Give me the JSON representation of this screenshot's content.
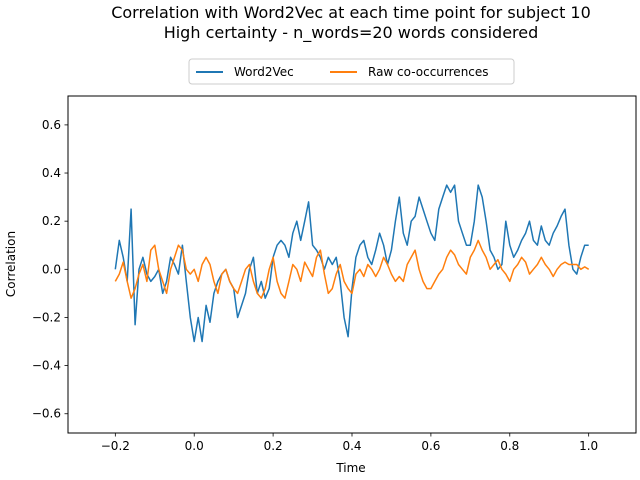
{
  "chart_data": {
    "type": "line",
    "title": "Correlation with Word2Vec at each time point for subject 10",
    "subtitle": "High certainty - n_words=20 words considered",
    "xlabel": "Time",
    "ylabel": "Correlation",
    "xlim": [
      -0.32,
      1.12
    ],
    "ylim": [
      -0.68,
      0.72
    ],
    "xticks": [
      -0.2,
      0.0,
      0.2,
      0.4,
      0.6,
      0.8,
      1.0
    ],
    "xtick_labels": [
      "−0.2",
      "0.0",
      "0.2",
      "0.4",
      "0.6",
      "0.8",
      "1.0"
    ],
    "yticks": [
      -0.6,
      -0.4,
      -0.2,
      0.0,
      0.2,
      0.4,
      0.6
    ],
    "ytick_labels": [
      "−0.6",
      "−0.4",
      "−0.2",
      "0.0",
      "0.2",
      "0.4",
      "0.6"
    ],
    "grid": false,
    "legend_position": "top-center",
    "series": [
      {
        "name": "Word2Vec",
        "color": "#1f77b4",
        "x": [
          -0.2,
          -0.19,
          -0.18,
          -0.17,
          -0.16,
          -0.15,
          -0.14,
          -0.13,
          -0.12,
          -0.11,
          -0.1,
          -0.09,
          -0.08,
          -0.07,
          -0.06,
          -0.05,
          -0.04,
          -0.03,
          -0.02,
          -0.01,
          0.0,
          0.01,
          0.02,
          0.03,
          0.04,
          0.05,
          0.06,
          0.07,
          0.08,
          0.09,
          0.1,
          0.11,
          0.12,
          0.13,
          0.14,
          0.15,
          0.16,
          0.17,
          0.18,
          0.19,
          0.2,
          0.21,
          0.22,
          0.23,
          0.24,
          0.25,
          0.26,
          0.27,
          0.28,
          0.29,
          0.3,
          0.31,
          0.32,
          0.33,
          0.34,
          0.35,
          0.36,
          0.37,
          0.38,
          0.39,
          0.4,
          0.41,
          0.42,
          0.43,
          0.44,
          0.45,
          0.46,
          0.47,
          0.48,
          0.49,
          0.5,
          0.51,
          0.52,
          0.53,
          0.54,
          0.55,
          0.56,
          0.57,
          0.58,
          0.59,
          0.6,
          0.61,
          0.62,
          0.63,
          0.64,
          0.65,
          0.66,
          0.67,
          0.68,
          0.69,
          0.7,
          0.71,
          0.72,
          0.73,
          0.74,
          0.75,
          0.76,
          0.77,
          0.78,
          0.79,
          0.8,
          0.81,
          0.82,
          0.83,
          0.84,
          0.85,
          0.86,
          0.87,
          0.88,
          0.89,
          0.9,
          0.91,
          0.92,
          0.93,
          0.94,
          0.95,
          0.96,
          0.97,
          0.98,
          0.99,
          1.0
        ],
        "y": [
          0.0,
          0.12,
          0.05,
          -0.05,
          0.25,
          -0.23,
          0.0,
          0.05,
          -0.02,
          -0.05,
          -0.03,
          0.0,
          -0.1,
          -0.05,
          0.05,
          0.02,
          -0.02,
          0.1,
          -0.05,
          -0.2,
          -0.3,
          -0.2,
          -0.3,
          -0.15,
          -0.22,
          -0.1,
          -0.05,
          -0.02,
          0.0,
          -0.05,
          -0.08,
          -0.2,
          -0.15,
          -0.1,
          0.0,
          0.05,
          -0.1,
          -0.05,
          -0.12,
          -0.08,
          0.05,
          0.1,
          0.12,
          0.1,
          0.05,
          0.15,
          0.2,
          0.12,
          0.2,
          0.28,
          0.1,
          0.08,
          0.05,
          0.0,
          0.05,
          0.02,
          0.05,
          -0.05,
          -0.2,
          -0.28,
          -0.08,
          0.05,
          0.1,
          0.12,
          0.05,
          0.02,
          0.08,
          0.15,
          0.1,
          0.02,
          0.08,
          0.2,
          0.3,
          0.15,
          0.1,
          0.2,
          0.22,
          0.3,
          0.25,
          0.2,
          0.15,
          0.12,
          0.25,
          0.3,
          0.35,
          0.32,
          0.35,
          0.2,
          0.15,
          0.1,
          0.1,
          0.2,
          0.35,
          0.3,
          0.2,
          0.08,
          0.05,
          0.0,
          0.02,
          0.2,
          0.1,
          0.05,
          0.08,
          0.12,
          0.15,
          0.2,
          0.12,
          0.1,
          0.18,
          0.12,
          0.1,
          0.15,
          0.18,
          0.22,
          0.25,
          0.1,
          0.0,
          -0.02,
          0.05,
          0.1,
          0.1
        ]
      },
      {
        "name": "Raw co-occurrences",
        "color": "#ff7f0e",
        "x": [
          -0.2,
          -0.19,
          -0.18,
          -0.17,
          -0.16,
          -0.15,
          -0.14,
          -0.13,
          -0.12,
          -0.11,
          -0.1,
          -0.09,
          -0.08,
          -0.07,
          -0.06,
          -0.05,
          -0.04,
          -0.03,
          -0.02,
          -0.01,
          0.0,
          0.01,
          0.02,
          0.03,
          0.04,
          0.05,
          0.06,
          0.07,
          0.08,
          0.09,
          0.1,
          0.11,
          0.12,
          0.13,
          0.14,
          0.15,
          0.16,
          0.17,
          0.18,
          0.19,
          0.2,
          0.21,
          0.22,
          0.23,
          0.24,
          0.25,
          0.26,
          0.27,
          0.28,
          0.29,
          0.3,
          0.31,
          0.32,
          0.33,
          0.34,
          0.35,
          0.36,
          0.37,
          0.38,
          0.39,
          0.4,
          0.41,
          0.42,
          0.43,
          0.44,
          0.45,
          0.46,
          0.47,
          0.48,
          0.49,
          0.5,
          0.51,
          0.52,
          0.53,
          0.54,
          0.55,
          0.56,
          0.57,
          0.58,
          0.59,
          0.6,
          0.61,
          0.62,
          0.63,
          0.64,
          0.65,
          0.66,
          0.67,
          0.68,
          0.69,
          0.7,
          0.71,
          0.72,
          0.73,
          0.74,
          0.75,
          0.76,
          0.77,
          0.78,
          0.79,
          0.8,
          0.81,
          0.82,
          0.83,
          0.84,
          0.85,
          0.86,
          0.87,
          0.88,
          0.89,
          0.9,
          0.91,
          0.92,
          0.93,
          0.94,
          0.95,
          0.96,
          0.97,
          0.98,
          0.99,
          1.0
        ],
        "y": [
          -0.05,
          -0.02,
          0.03,
          -0.05,
          -0.12,
          -0.08,
          -0.02,
          0.02,
          -0.05,
          0.08,
          0.1,
          0.0,
          -0.05,
          -0.1,
          0.0,
          0.05,
          0.1,
          0.08,
          0.0,
          -0.02,
          0.0,
          -0.05,
          0.02,
          0.05,
          0.02,
          -0.05,
          -0.1,
          -0.02,
          0.0,
          -0.05,
          -0.08,
          -0.1,
          -0.05,
          0.0,
          0.02,
          -0.05,
          -0.1,
          -0.12,
          -0.08,
          0.0,
          0.05,
          -0.05,
          -0.1,
          -0.12,
          -0.05,
          0.02,
          0.0,
          -0.05,
          0.03,
          0.0,
          -0.03,
          0.05,
          0.08,
          -0.02,
          -0.1,
          -0.08,
          -0.02,
          0.02,
          -0.05,
          -0.08,
          -0.1,
          -0.02,
          0.0,
          -0.03,
          0.02,
          0.0,
          -0.03,
          0.0,
          0.05,
          0.02,
          -0.02,
          -0.05,
          -0.03,
          -0.05,
          0.02,
          0.05,
          0.08,
          0.0,
          -0.05,
          -0.08,
          -0.08,
          -0.05,
          -0.02,
          0.0,
          0.05,
          0.08,
          0.06,
          0.02,
          0.0,
          -0.02,
          0.05,
          0.08,
          0.12,
          0.08,
          0.05,
          0.0,
          0.02,
          0.04,
          0.0,
          -0.02,
          -0.05,
          0.0,
          0.02,
          0.05,
          0.03,
          -0.02,
          0.0,
          0.02,
          0.05,
          0.02,
          0.0,
          -0.03,
          0.0,
          0.02,
          0.03,
          0.02,
          0.02,
          0.02,
          0.0,
          0.01,
          0.0
        ]
      }
    ]
  }
}
